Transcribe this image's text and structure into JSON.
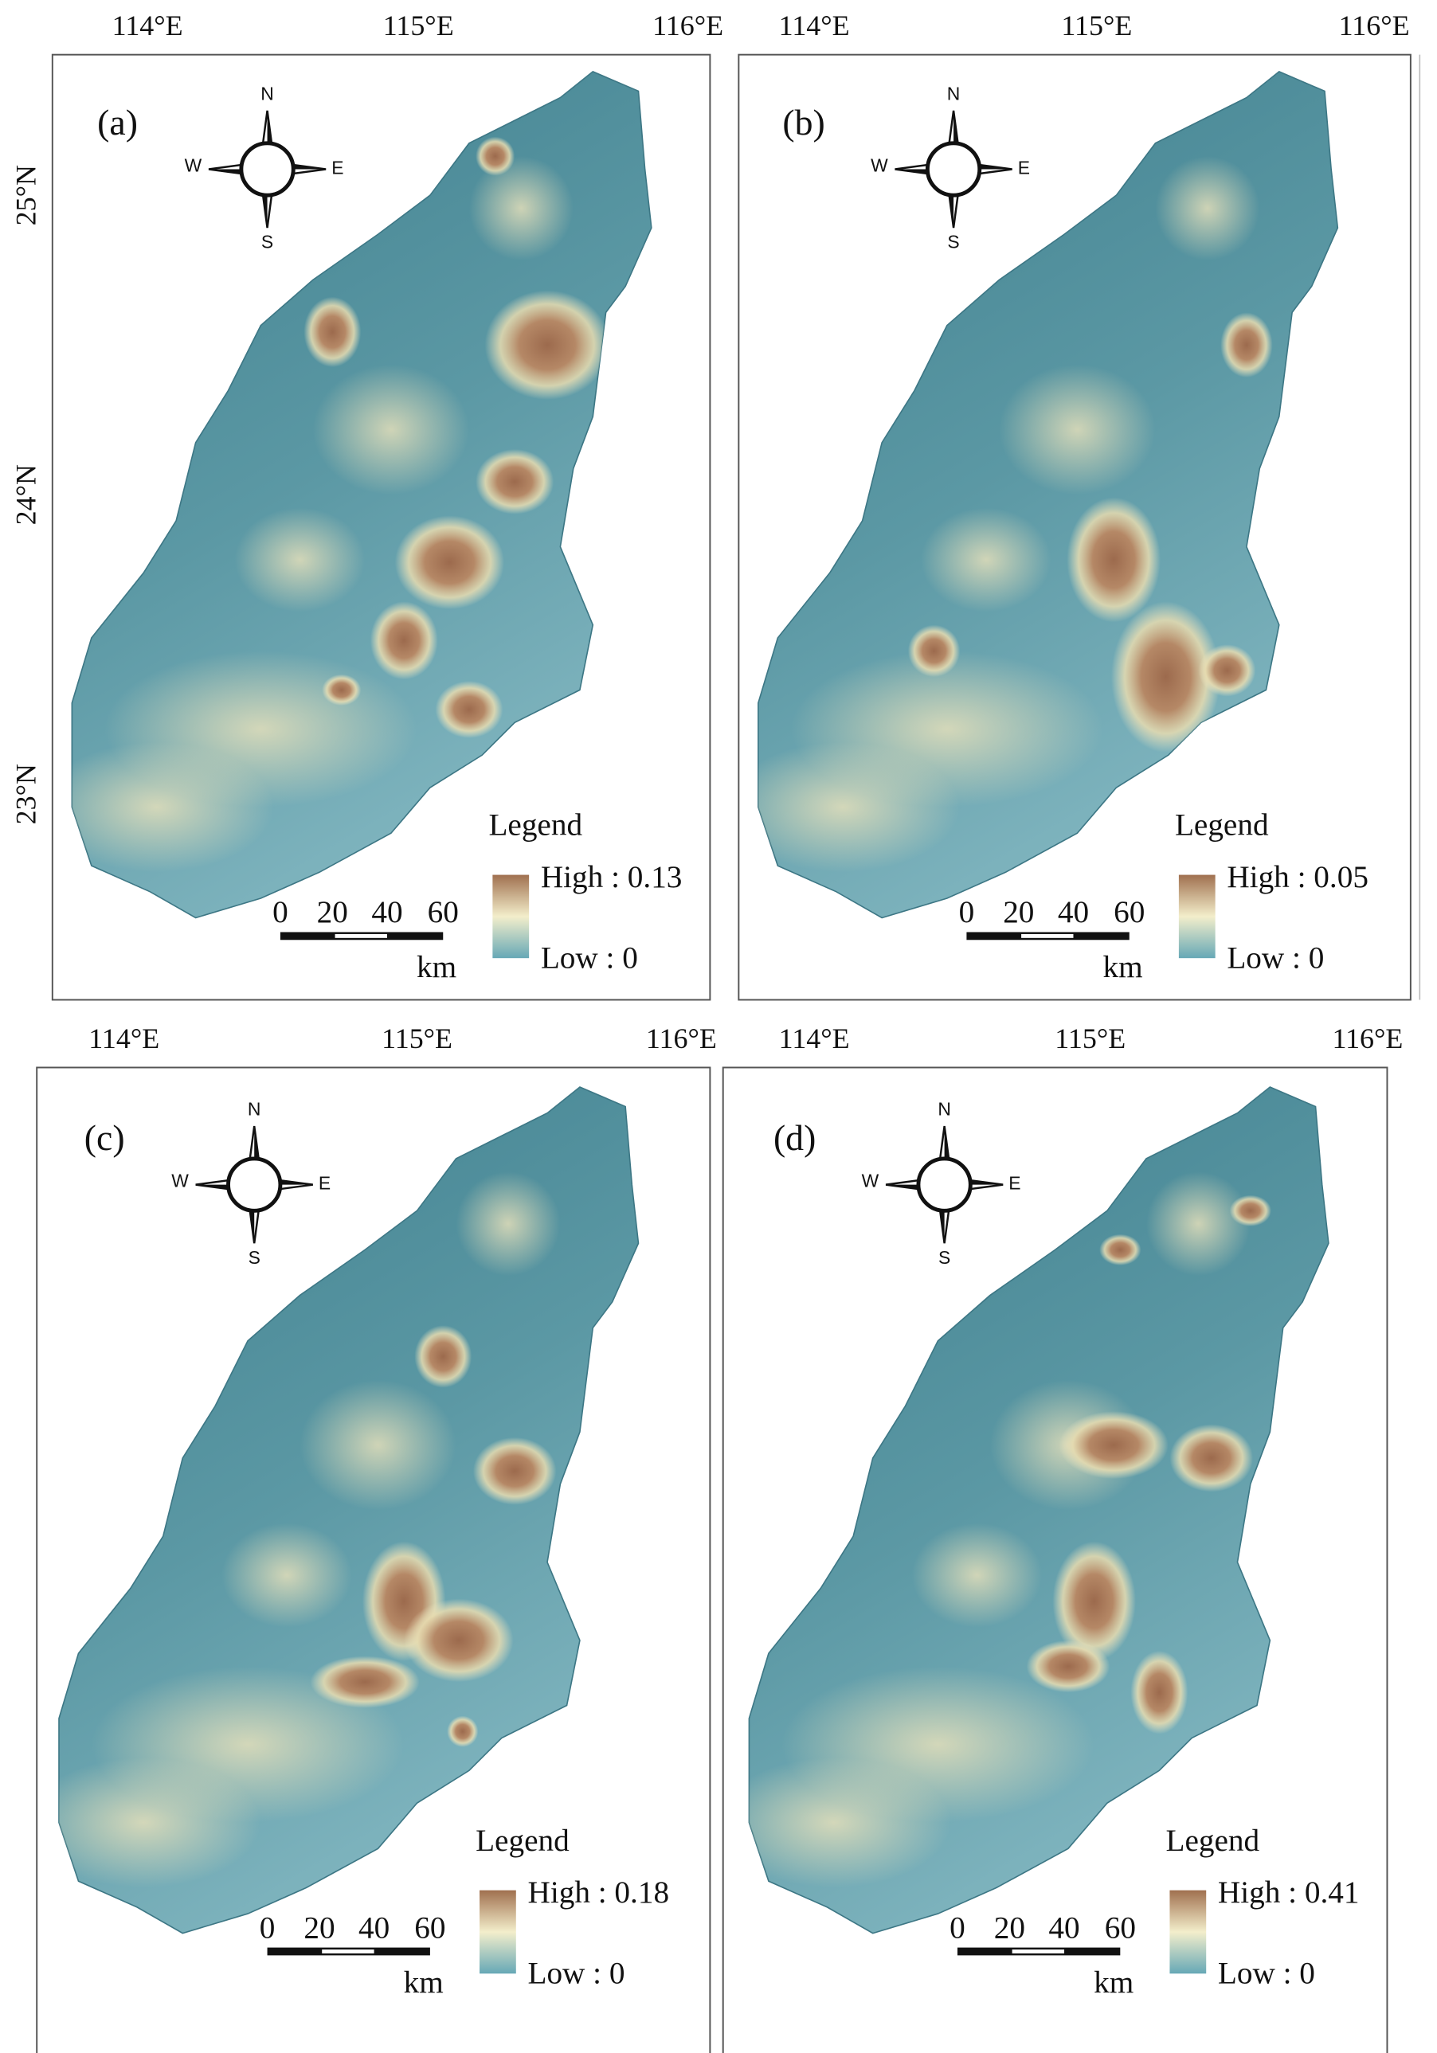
{
  "axes": {
    "lon_ticks": [
      "114°E",
      "115°E",
      "116°E"
    ],
    "lat_ticks": [
      "25°N",
      "24°N",
      "23°N"
    ]
  },
  "compass": {
    "n": "N",
    "e": "E",
    "s": "S",
    "w": "W"
  },
  "scale_bar": {
    "ticks": [
      "0",
      "20",
      "40",
      "60"
    ],
    "unit": "km"
  },
  "panels": [
    {
      "label": "(a)",
      "legend_title": "Legend",
      "high": "High : 0.13",
      "low": "Low : 0"
    },
    {
      "label": "(b)",
      "legend_title": "Legend",
      "high": "High : 0.05",
      "low": "Low : 0"
    },
    {
      "label": "(c)",
      "legend_title": "Legend",
      "high": "High : 0.18",
      "low": "Low : 0"
    },
    {
      "label": "(d)",
      "legend_title": "Legend",
      "high": "High : 0.41",
      "low": "Low : 0"
    }
  ]
}
